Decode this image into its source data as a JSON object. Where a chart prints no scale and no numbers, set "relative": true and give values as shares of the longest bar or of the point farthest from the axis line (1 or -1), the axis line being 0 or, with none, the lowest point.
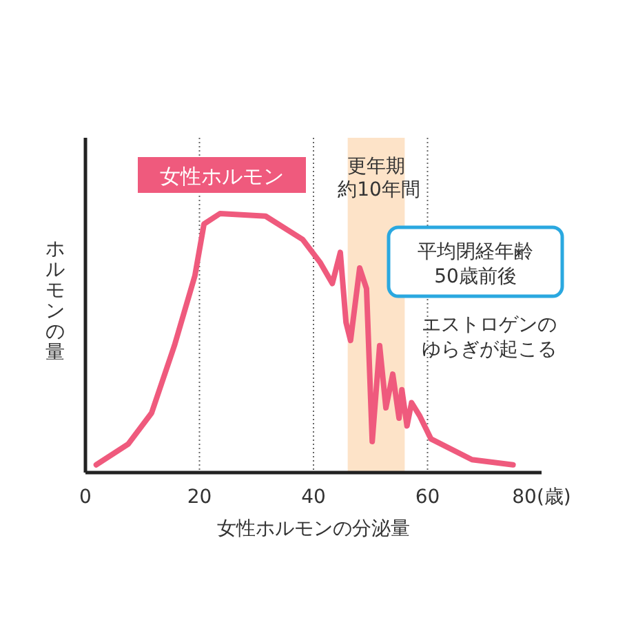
{
  "chart_data": {
    "type": "line",
    "relative": true,
    "xlabel": "女性ホルモンの分泌量",
    "ylabel": "ホルモンの量",
    "xlim": [
      0,
      80
    ],
    "xticks": [
      0,
      20,
      40,
      60,
      {
        "value": 80,
        "label": "80(歳)"
      }
    ],
    "grid": "x",
    "legend": "top left",
    "line_style": "solid",
    "marker": "none",
    "series": [
      {
        "name": "女性ホルモン",
        "color": "#ef5a7d",
        "x": [
          1.9,
          7.5,
          11.6,
          15.6,
          19.2,
          20.8,
          23.6,
          31.6,
          38.1,
          41.2,
          43.3,
          44.7,
          45.7,
          46.5,
          48.1,
          49.3,
          50.3,
          51.6,
          52.7,
          53.9,
          55.0,
          55.5,
          56.4,
          57.2,
          58.6,
          60.6,
          67.8,
          75.0
        ],
        "values": [
          0.03,
          0.11,
          0.23,
          0.49,
          0.76,
          0.96,
          1.0,
          0.99,
          0.9,
          0.81,
          0.73,
          0.85,
          0.58,
          0.51,
          0.79,
          0.71,
          0.12,
          0.49,
          0.25,
          0.38,
          0.21,
          0.32,
          0.18,
          0.27,
          0.22,
          0.13,
          0.05,
          0.03
        ]
      }
    ],
    "bands": [
      {
        "axis": "x",
        "from": 46,
        "to": 56,
        "label": "更年期",
        "color": "#fde3c8"
      }
    ],
    "annotations": [
      "約10年間",
      "平均閉経年齢",
      "50歳前後",
      "エストロゲンの",
      "ゆらぎが起こる"
    ]
  }
}
